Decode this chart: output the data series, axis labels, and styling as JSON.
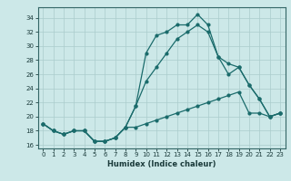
{
  "xlabel": "Humidex (Indice chaleur)",
  "ylabel": "",
  "background_color": "#cce8e8",
  "line_color": "#1a6b6b",
  "xlim": [
    -0.5,
    23.5
  ],
  "ylim": [
    15.5,
    35.5
  ],
  "xticks": [
    0,
    1,
    2,
    3,
    4,
    5,
    6,
    7,
    8,
    9,
    10,
    11,
    12,
    13,
    14,
    15,
    16,
    17,
    18,
    19,
    20,
    21,
    22,
    23
  ],
  "yticks": [
    16,
    18,
    20,
    22,
    24,
    26,
    28,
    30,
    32,
    34
  ],
  "line1_x": [
    0,
    1,
    2,
    3,
    4,
    5,
    6,
    7,
    8,
    9,
    10,
    11,
    12,
    13,
    14,
    15,
    16,
    17,
    18,
    19,
    20,
    21,
    22,
    23
  ],
  "line1_y": [
    19,
    18,
    17.5,
    18,
    18,
    16.5,
    16.5,
    17,
    18.5,
    21.5,
    29,
    31.5,
    32,
    33,
    33,
    34.5,
    33,
    28.5,
    27.5,
    27,
    24.5,
    22.5,
    20,
    20.5
  ],
  "line2_x": [
    0,
    1,
    2,
    3,
    4,
    5,
    6,
    7,
    8,
    9,
    10,
    11,
    12,
    13,
    14,
    15,
    16,
    17,
    18,
    19,
    20,
    21,
    22,
    23
  ],
  "line2_y": [
    19,
    18,
    17.5,
    18,
    18,
    16.5,
    16.5,
    17,
    18.5,
    21.5,
    25,
    27,
    29,
    31,
    32,
    33,
    32,
    28.5,
    26,
    27,
    24.5,
    22.5,
    20,
    20.5
  ],
  "line3_x": [
    0,
    1,
    2,
    3,
    4,
    5,
    6,
    7,
    8,
    9,
    10,
    11,
    12,
    13,
    14,
    15,
    16,
    17,
    18,
    19,
    20,
    21,
    22,
    23
  ],
  "line3_y": [
    19,
    18,
    17.5,
    18,
    18,
    16.5,
    16.5,
    17,
    18.5,
    18.5,
    19,
    19.5,
    20,
    20.5,
    21,
    21.5,
    22,
    22.5,
    23,
    23.5,
    20.5,
    20.5,
    20,
    20.5
  ],
  "tick_fontsize": 5,
  "xlabel_fontsize": 6,
  "grid_color": "#aacccc",
  "grid_lw": 0.5
}
